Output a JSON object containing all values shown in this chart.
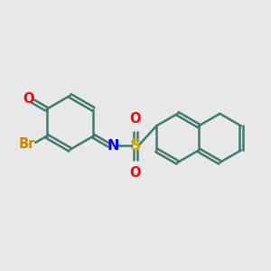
{
  "bg_color": "#e8e8e8",
  "bond_color": "#3d7a70",
  "bond_width": 1.8,
  "atom_colors": {
    "O": "#ff0000",
    "Br": "#cc8800",
    "N": "#0000ee",
    "S": "#ccaa00"
  },
  "font_size": 10.5,
  "xlim": [
    -5.5,
    5.0
  ],
  "ylim": [
    -2.8,
    2.8
  ]
}
